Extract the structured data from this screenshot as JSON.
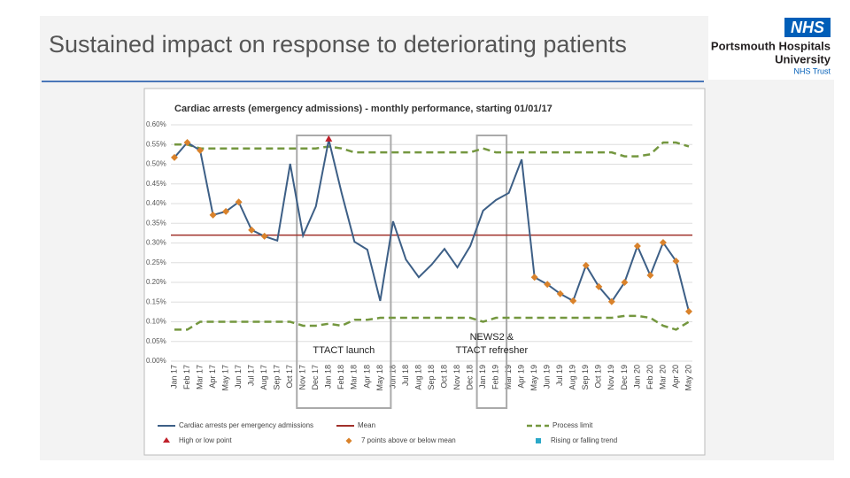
{
  "header": {
    "title": "Sustained impact on response to deteriorating patients",
    "logo": {
      "mark": "NHS",
      "name_lines": [
        "Portsmouth Hospitals",
        "University"
      ],
      "sub": "NHS Trust"
    }
  },
  "chart_data": {
    "type": "line",
    "title": "Cardiac arrests (emergency admissions) - monthly performance, starting 01/01/17",
    "categories": [
      "Jan 17",
      "Feb 17",
      "Mar 17",
      "Apr 17",
      "May 17",
      "Jun 17",
      "Jul 17",
      "Aug 17",
      "Sep 17",
      "Oct 17",
      "Nov 17",
      "Dec 17",
      "Jan 18",
      "Feb 18",
      "Mar 18",
      "Apr 18",
      "May 18",
      "Jun 18",
      "Jul 18",
      "Aug 18",
      "Sep 18",
      "Oct 18",
      "Nov 18",
      "Dec 18",
      "Jan 19",
      "Feb 19",
      "Mar 19",
      "Apr 19",
      "May 19",
      "Jun 19",
      "Jul 19",
      "Aug 19",
      "Sep 19",
      "Oct 19",
      "Nov 19",
      "Dec 19",
      "Jan 20",
      "Feb 20",
      "Mar 20",
      "Apr 20",
      "May 20"
    ],
    "series": [
      {
        "name": "Cardiac arrests per emergency admissions",
        "color": "#3d5f86",
        "values": [
          0.517,
          0.555,
          0.535,
          0.371,
          0.38,
          0.404,
          0.333,
          0.317,
          0.306,
          0.501,
          0.319,
          0.393,
          0.562,
          0.427,
          0.303,
          0.283,
          0.153,
          0.355,
          0.258,
          0.213,
          0.245,
          0.285,
          0.238,
          0.292,
          0.382,
          0.409,
          0.427,
          0.512,
          0.213,
          0.195,
          0.171,
          0.153,
          0.243,
          0.189,
          0.151,
          0.2,
          0.292,
          0.218,
          0.301,
          0.254,
          0.126
        ],
        "markers": [
          "run",
          "run",
          "run",
          "run",
          "run",
          "run",
          "run",
          "run",
          null,
          null,
          null,
          null,
          "high",
          null,
          null,
          null,
          null,
          null,
          null,
          null,
          null,
          null,
          null,
          null,
          null,
          null,
          null,
          null,
          "run",
          "run",
          "run",
          "run",
          "run",
          "run",
          "run",
          "run",
          "run",
          "run",
          "run",
          "run",
          "run"
        ]
      }
    ],
    "mean": {
      "name": "Mean",
      "value": 0.32,
      "color": "#a0302a"
    },
    "process_limit": {
      "name": "Process limit",
      "color": "#74973f",
      "upper": [
        0.55,
        0.55,
        0.54,
        0.54,
        0.54,
        0.54,
        0.54,
        0.54,
        0.54,
        0.54,
        0.54,
        0.54,
        0.545,
        0.54,
        0.53,
        0.53,
        0.53,
        0.53,
        0.53,
        0.53,
        0.53,
        0.53,
        0.53,
        0.53,
        0.54,
        0.53,
        0.53,
        0.53,
        0.53,
        0.53,
        0.53,
        0.53,
        0.53,
        0.53,
        0.53,
        0.52,
        0.52,
        0.525,
        0.555,
        0.555,
        0.545
      ],
      "lower": [
        0.08,
        0.08,
        0.1,
        0.1,
        0.1,
        0.1,
        0.1,
        0.1,
        0.1,
        0.1,
        0.09,
        0.09,
        0.095,
        0.09,
        0.105,
        0.105,
        0.11,
        0.11,
        0.11,
        0.11,
        0.11,
        0.11,
        0.11,
        0.11,
        0.1,
        0.11,
        0.11,
        0.11,
        0.11,
        0.11,
        0.11,
        0.11,
        0.11,
        0.11,
        0.11,
        0.115,
        0.115,
        0.11,
        0.09,
        0.08,
        0.1
      ]
    },
    "marker_legend": [
      {
        "key": "high",
        "name": "High or low point",
        "color": "#c0202a"
      },
      {
        "key": "run",
        "name": "7 points above or below mean",
        "color": "#d9822b"
      },
      {
        "key": "trend",
        "name": "Rising or falling trend",
        "color": "#2aa8c8"
      }
    ],
    "annotations": [
      {
        "text_lines": [
          "TTACT launch"
        ],
        "from": "Nov 17",
        "to": "May 18"
      },
      {
        "text_lines": [
          "NEWS2 &",
          "TTACT refresher"
        ],
        "from": "Jan 19",
        "to": "Feb 19"
      }
    ],
    "ylim": [
      0,
      0.6
    ],
    "yticks": [
      {
        "value": 0,
        "label": "0.00%"
      },
      {
        "value": 0.05,
        "label": "0.05%"
      },
      {
        "value": 0.1,
        "label": "0.10%"
      },
      {
        "value": 0.15,
        "label": "0.15%"
      },
      {
        "value": 0.2,
        "label": "0.20%"
      },
      {
        "value": 0.25,
        "label": "0.25%"
      },
      {
        "value": 0.3,
        "label": "0.30%"
      },
      {
        "value": 0.35,
        "label": "0.35%"
      },
      {
        "value": 0.4,
        "label": "0.40%"
      },
      {
        "value": 0.45,
        "label": "0.45%"
      },
      {
        "value": 0.5,
        "label": "0.50%"
      },
      {
        "value": 0.55,
        "label": "0.55%"
      },
      {
        "value": 0.6,
        "label": "0.60%"
      }
    ],
    "grid": true
  }
}
